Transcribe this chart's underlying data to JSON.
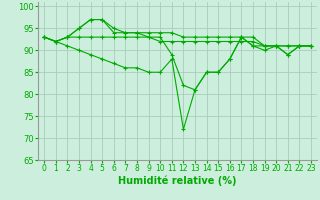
{
  "xlabel": "Humidité relative (%)",
  "bg_color": "#cceedd",
  "grid_color": "#aaccbb",
  "line_color": "#00aa00",
  "marker": "+",
  "xlim": [
    -0.5,
    23.5
  ],
  "ylim": [
    65,
    101
  ],
  "yticks": [
    65,
    70,
    75,
    80,
    85,
    90,
    95,
    100
  ],
  "xticks": [
    0,
    1,
    2,
    3,
    4,
    5,
    6,
    7,
    8,
    9,
    10,
    11,
    12,
    13,
    14,
    15,
    16,
    17,
    18,
    19,
    20,
    21,
    22,
    23
  ],
  "series": [
    [
      93,
      92,
      93,
      93,
      93,
      93,
      93,
      93,
      93,
      93,
      92,
      92,
      92,
      92,
      92,
      92,
      92,
      92,
      92,
      91,
      91,
      91,
      91,
      91
    ],
    [
      93,
      92,
      93,
      95,
      97,
      97,
      95,
      94,
      94,
      94,
      94,
      94,
      93,
      93,
      93,
      93,
      93,
      93,
      93,
      91,
      91,
      91,
      91,
      91
    ],
    [
      93,
      92,
      93,
      95,
      97,
      97,
      94,
      94,
      94,
      93,
      93,
      89,
      82,
      81,
      85,
      85,
      88,
      93,
      91,
      91,
      91,
      89,
      91,
      91
    ],
    [
      93,
      92,
      91,
      90,
      89,
      88,
      87,
      86,
      86,
      85,
      85,
      88,
      72,
      81,
      85,
      85,
      88,
      93,
      91,
      90,
      91,
      89,
      91,
      91
    ]
  ],
  "tick_fontsize": 6,
  "xlabel_fontsize": 7,
  "linewidth": 0.8,
  "markersize": 3
}
